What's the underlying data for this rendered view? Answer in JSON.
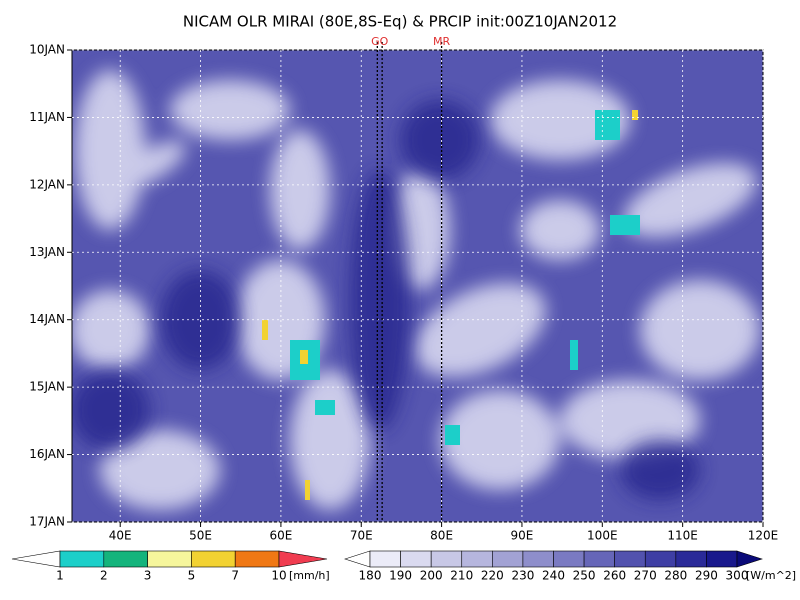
{
  "chart_data": {
    "type": "hovmoller",
    "title": "NICAM OLR MIRAI (80E,8S-Eq) & PRCIP init:00Z10JAN2012",
    "xlim": [
      34,
      120
    ],
    "ylim": [
      10,
      17
    ],
    "xticks": [
      {
        "value": 40,
        "label": "40E"
      },
      {
        "value": 50,
        "label": "50E"
      },
      {
        "value": 60,
        "label": "60E"
      },
      {
        "value": 70,
        "label": "70E"
      },
      {
        "value": 80,
        "label": "80E"
      },
      {
        "value": 90,
        "label": "90E"
      },
      {
        "value": 100,
        "label": "100E"
      },
      {
        "value": 110,
        "label": "110E"
      },
      {
        "value": 120,
        "label": "120E"
      }
    ],
    "yticks": [
      {
        "value": 10,
        "label": "10JAN"
      },
      {
        "value": 11,
        "label": "11JAN"
      },
      {
        "value": 12,
        "label": "12JAN"
      },
      {
        "value": 13,
        "label": "13JAN"
      },
      {
        "value": 14,
        "label": "14JAN"
      },
      {
        "value": 15,
        "label": "15JAN"
      },
      {
        "value": 16,
        "label": "16JAN"
      },
      {
        "value": 17,
        "label": "17JAN"
      }
    ],
    "grid": true,
    "markers": [
      {
        "label": "GO",
        "lons": [
          72,
          72.6
        ]
      },
      {
        "label": "MR",
        "lons": [
          80
        ]
      }
    ],
    "precip_colorbar": {
      "levels": [
        1,
        2,
        3,
        5,
        7,
        10
      ],
      "unit": "[mm/h]",
      "colors": [
        "#ffffff",
        "#1ccfc9",
        "#14b47c",
        "#f6f69c",
        "#f2d232",
        "#f07814",
        "#f03c50"
      ]
    },
    "olr_colorbar": {
      "levels": [
        180,
        190,
        200,
        210,
        220,
        230,
        240,
        250,
        260,
        270,
        280,
        290,
        300
      ],
      "unit": "[W/m^2]",
      "colors": [
        "#ffffff",
        "#ececf8",
        "#dadaf0",
        "#c8c8e6",
        "#b6b6de",
        "#a2a2d4",
        "#8e8ecb",
        "#7a7ac2",
        "#6666b8",
        "#5252ae",
        "#3e3ea4",
        "#2a2a98",
        "#18188c",
        "#0a0a78"
      ]
    }
  }
}
